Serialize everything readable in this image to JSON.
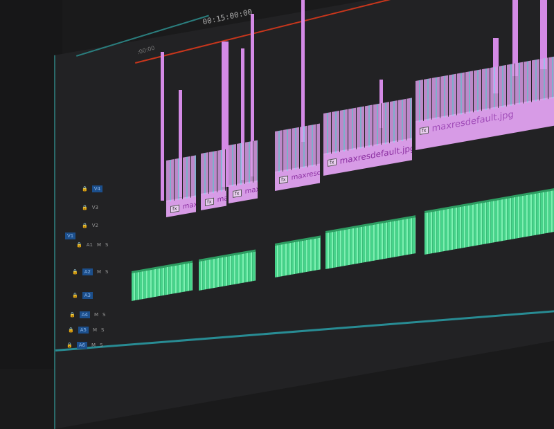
{
  "timeline": {
    "timecode": "00:15:00:00",
    "start_timecode": ":00:00",
    "playhead_color": "#c8361c"
  },
  "tracks": {
    "video": [
      "V4",
      "V3",
      "V2",
      "V1"
    ],
    "audio": [
      "A1",
      "A2",
      "A3",
      "A4",
      "A5",
      "A6"
    ],
    "mute": "M",
    "solo": "S"
  },
  "video_clips": [
    {
      "name": "max",
      "fx": "fx"
    },
    {
      "name": "maxi",
      "fx": "fx"
    },
    {
      "name": "maxre",
      "fx": "fx"
    },
    {
      "name": "maxresde",
      "fx": "fx"
    },
    {
      "name": "maxresdefault.jpg",
      "fx": "fx"
    },
    {
      "name": "maxresdefault.jpg",
      "fx": "fx"
    }
  ],
  "colors": {
    "video_clip": "#d79be6",
    "audio_clip": "#47d48b",
    "track_target": "#1c4f8c",
    "accent": "#2aa7b0"
  }
}
